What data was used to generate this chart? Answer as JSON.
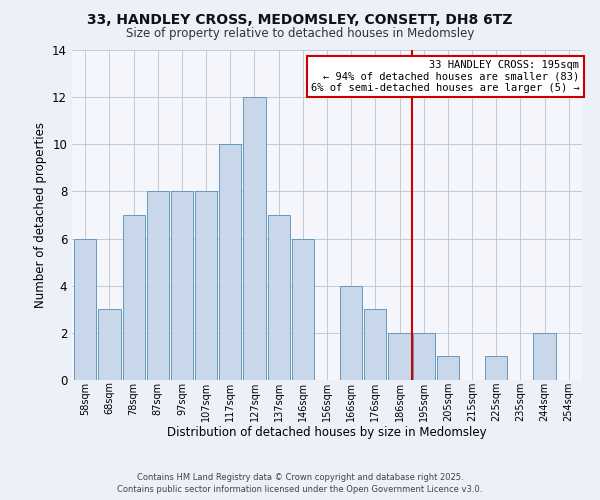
{
  "title": "33, HANDLEY CROSS, MEDOMSLEY, CONSETT, DH8 6TZ",
  "subtitle": "Size of property relative to detached houses in Medomsley",
  "xlabel": "Distribution of detached houses by size in Medomsley",
  "ylabel": "Number of detached properties",
  "bar_labels": [
    "58sqm",
    "68sqm",
    "78sqm",
    "87sqm",
    "97sqm",
    "107sqm",
    "117sqm",
    "127sqm",
    "137sqm",
    "146sqm",
    "156sqm",
    "166sqm",
    "176sqm",
    "186sqm",
    "195sqm",
    "205sqm",
    "215sqm",
    "225sqm",
    "235sqm",
    "244sqm",
    "254sqm"
  ],
  "bar_values": [
    6,
    3,
    7,
    8,
    8,
    8,
    10,
    12,
    7,
    6,
    0,
    4,
    3,
    2,
    2,
    1,
    0,
    1,
    0,
    2,
    0
  ],
  "bar_color": "#c8d8ea",
  "bar_edge_color": "#6699bb",
  "vline_x_index": 13.5,
  "vline_color": "#cc0000",
  "annotation_title": "33 HANDLEY CROSS: 195sqm",
  "annotation_line1": "← 94% of detached houses are smaller (83)",
  "annotation_line2": "6% of semi-detached houses are larger (5) →",
  "annotation_box_color": "#ffffff",
  "annotation_box_edge_color": "#cc0000",
  "ylim": [
    0,
    14
  ],
  "yticks": [
    0,
    2,
    4,
    6,
    8,
    10,
    12,
    14
  ],
  "footer1": "Contains HM Land Registry data © Crown copyright and database right 2025.",
  "footer2": "Contains public sector information licensed under the Open Government Licence v3.0.",
  "bg_color": "#ecf0f8",
  "plot_bg_color": "#f4f6fb"
}
